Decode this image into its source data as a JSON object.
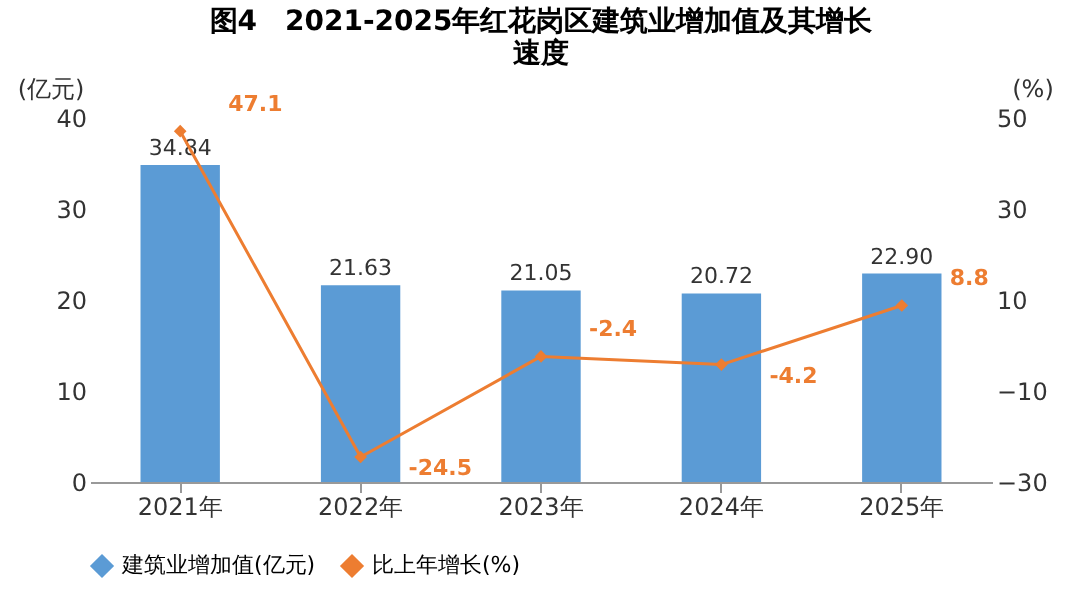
{
  "chart_data": {
    "type": "bar",
    "title": "图4　2021-2025年红花岗区建筑业增加值及其增长速度",
    "categories": [
      "2021年",
      "2022年",
      "2023年",
      "2024年",
      "2025年"
    ],
    "ylabel": "(亿元)",
    "y2label": "(%)",
    "ylim": [
      0,
      40
    ],
    "yticks": [
      0,
      10,
      20,
      30,
      40
    ],
    "y2lim": [
      -30,
      50
    ],
    "y2ticks": [
      -30,
      -10,
      10,
      30,
      50
    ],
    "series": [
      {
        "name": "建筑业增加值(亿元)",
        "color": "#5b9bd5",
        "values": [
          34.84,
          21.63,
          21.05,
          20.72,
          22.9
        ],
        "value_labels": [
          "34.84",
          "21.63",
          "21.05",
          "20.72",
          "22.90"
        ]
      },
      {
        "name": "比上年增长(%)",
        "type": "line",
        "axis": "y2",
        "color": "#ed7d31",
        "values": [
          47.1,
          -24.5,
          -2.4,
          -4.2,
          8.8
        ],
        "value_labels": [
          "47.1",
          "-24.5",
          "-2.4",
          "-4.2",
          "8.8"
        ]
      }
    ],
    "grid": false,
    "legend": "bottom",
    "marker": "diamond",
    "line_style": "solid"
  }
}
